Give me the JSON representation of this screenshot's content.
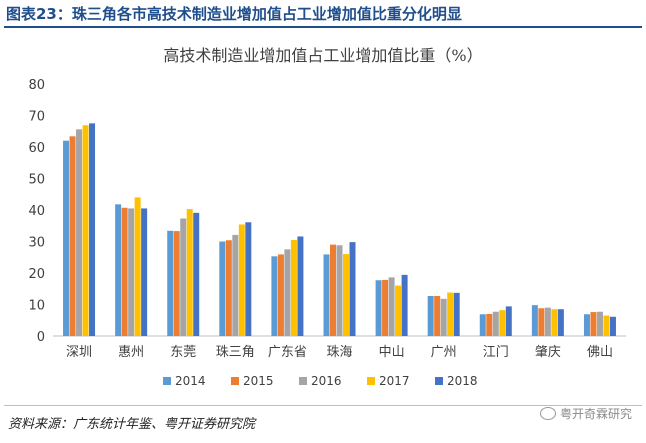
{
  "figure_title": "图表23：珠三角各市高技术制造业增加值占工业增加值比重分化明显",
  "source": "资料来源：广东统计年鉴、粤开证券研究院",
  "watermark": "粤开奇霖研究",
  "chart_data": {
    "type": "bar",
    "title": "高技术制造业增加值占工业增加值比重（%）",
    "xlabel": "",
    "ylabel": "",
    "ylim": [
      0,
      80
    ],
    "yticks": [
      0,
      10,
      20,
      30,
      40,
      50,
      60,
      70,
      80
    ],
    "grid": false,
    "legend_position": "bottom",
    "categories": [
      "深圳",
      "惠州",
      "东莞",
      "珠三角",
      "广东省",
      "珠海",
      "中山",
      "广州",
      "江门",
      "肇庆",
      "佛山"
    ],
    "series": [
      {
        "name": "2014",
        "color": "#5b9bd5",
        "values": [
          62.0,
          41.8,
          33.4,
          30.0,
          25.3,
          25.9,
          17.7,
          12.7,
          6.9,
          9.8,
          6.9
        ]
      },
      {
        "name": "2015",
        "color": "#ed7d31",
        "values": [
          63.4,
          40.7,
          33.3,
          30.4,
          25.9,
          29.0,
          17.8,
          12.7,
          7.0,
          8.8,
          7.6
        ]
      },
      {
        "name": "2016",
        "color": "#a5a5a5",
        "values": [
          65.6,
          40.5,
          37.3,
          32.1,
          27.5,
          28.8,
          18.6,
          11.8,
          7.7,
          9.0,
          7.7
        ]
      },
      {
        "name": "2017",
        "color": "#ffc000",
        "values": [
          66.9,
          44.0,
          40.3,
          35.4,
          30.5,
          26.0,
          16.0,
          13.8,
          8.2,
          8.5,
          6.5
        ]
      },
      {
        "name": "2018",
        "color": "#4472c4",
        "values": [
          67.5,
          40.5,
          39.1,
          36.1,
          31.6,
          29.8,
          19.4,
          13.7,
          9.4,
          8.5,
          6.1
        ]
      }
    ]
  }
}
